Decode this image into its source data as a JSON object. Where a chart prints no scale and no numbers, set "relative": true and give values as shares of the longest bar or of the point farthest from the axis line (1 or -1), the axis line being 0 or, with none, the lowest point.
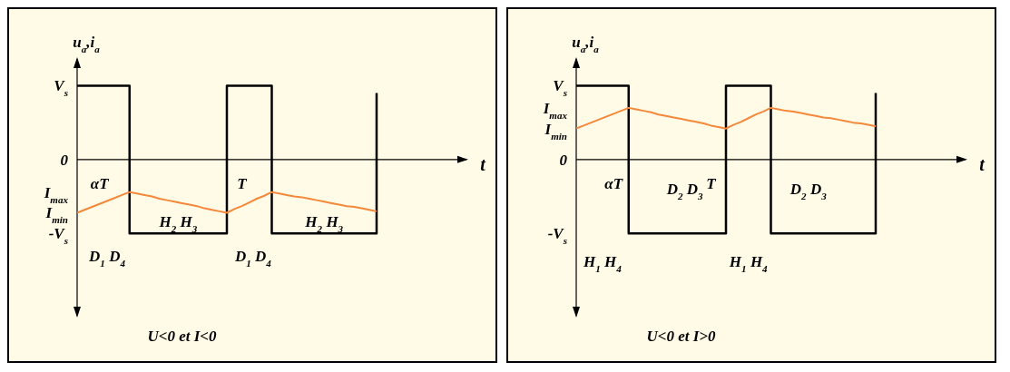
{
  "chart_data": [
    {
      "type": "line",
      "relative": true,
      "xlabel": "t",
      "ylabel": "u$_{a}$,i$_{a}$",
      "categories": [
        null,
        null,
        null,
        "αT",
        null,
        null,
        null,
        null,
        null,
        null,
        null,
        null,
        null,
        null,
        null,
        null,
        null,
        null,
        null,
        null,
        null,
        null,
        "T",
        null,
        null,
        null,
        null,
        null,
        null,
        null,
        null,
        null,
        null,
        null,
        null,
        null,
        null,
        null,
        null,
        null,
        null,
        null,
        null,
        null,
        null,
        null,
        null,
        null,
        null,
        null,
        null,
        null,
        null
      ],
      "series": [
        {
          "type": "step",
          "color": "#000000",
          "values": [
            1,
            1,
            1,
            1,
            1,
            1,
            1,
            -1,
            -1,
            -1,
            -1,
            -1,
            -1,
            -1,
            -1,
            -1,
            -1,
            -1,
            -1,
            -1,
            1,
            1,
            1,
            1,
            1,
            1,
            -1,
            -1,
            -1,
            -1,
            -1,
            -1,
            -1,
            -1,
            -1,
            -1,
            -1,
            -1,
            -1,
            -1,
            0.9,
            null,
            null,
            null,
            null,
            null,
            null,
            null,
            null,
            null,
            null,
            null,
            null
          ]
        },
        {
          "color": "#f5883a",
          "values": [
            -0.72,
            -0.68,
            -0.64,
            -0.6,
            -0.56,
            -0.52,
            -0.48,
            -0.44,
            -0.46,
            -0.48,
            -0.5,
            -0.53,
            -0.55,
            -0.57,
            -0.59,
            -0.61,
            -0.63,
            -0.66,
            -0.68,
            -0.7,
            -0.72,
            -0.67,
            -0.63,
            -0.58,
            -0.53,
            -0.49,
            -0.44,
            -0.46,
            -0.48,
            -0.5,
            -0.51,
            -0.53,
            -0.55,
            -0.57,
            -0.59,
            -0.61,
            -0.63,
            -0.64,
            -0.66,
            -0.68,
            -0.7,
            null,
            null,
            null,
            null,
            null,
            null,
            null,
            null,
            null,
            null,
            null,
            null
          ]
        }
      ],
      "annotations": [
        "V$_{s}$",
        "0",
        "I$_{max}$",
        "I$_{min}$",
        "-V$_{s}$",
        "H$_{2}$ H$_{3}$",
        "H$_{2}$ H$_{3}$",
        "D$_{1}$ D$_{4}$",
        "D$_{1}$ D$_{4}$",
        "U<0 et I<0"
      ]
    },
    {
      "type": "line",
      "relative": true,
      "xlabel": "t",
      "ylabel": "u$_{a}$,i$_{a}$",
      "categories": [
        null,
        null,
        null,
        null,
        null,
        "αT",
        null,
        null,
        null,
        null,
        null,
        null,
        null,
        null,
        null,
        null,
        null,
        null,
        "T",
        null,
        null,
        null,
        null,
        null,
        null,
        null,
        null,
        null,
        null,
        null,
        null,
        null,
        null,
        null,
        null,
        null,
        null,
        null,
        null,
        null,
        null,
        null,
        null,
        null,
        null,
        null,
        null,
        null,
        null,
        null,
        null,
        null,
        null
      ],
      "series": [
        {
          "type": "step",
          "color": "#000000",
          "values": [
            1,
            1,
            1,
            1,
            1,
            1,
            1,
            -1,
            -1,
            -1,
            -1,
            -1,
            -1,
            -1,
            -1,
            -1,
            -1,
            -1,
            -1,
            -1,
            1,
            1,
            1,
            1,
            1,
            1,
            -1,
            -1,
            -1,
            -1,
            -1,
            -1,
            -1,
            -1,
            -1,
            -1,
            -1,
            -1,
            -1,
            -1,
            0.9,
            null,
            null,
            null,
            null,
            null,
            null,
            null,
            null,
            null,
            null,
            null,
            null
          ]
        },
        {
          "color": "#f5883a",
          "values": [
            0.42,
            0.46,
            0.5,
            0.54,
            0.58,
            0.62,
            0.66,
            0.7,
            0.68,
            0.66,
            0.64,
            0.61,
            0.59,
            0.57,
            0.55,
            0.53,
            0.51,
            0.49,
            0.46,
            0.44,
            0.42,
            0.47,
            0.51,
            0.56,
            0.61,
            0.65,
            0.7,
            0.68,
            0.66,
            0.65,
            0.63,
            0.61,
            0.59,
            0.57,
            0.56,
            0.54,
            0.52,
            0.5,
            0.49,
            0.47,
            0.45,
            null,
            null,
            null,
            null,
            null,
            null,
            null,
            null,
            null,
            null,
            null,
            null
          ]
        }
      ],
      "annotations": [
        "V$_{s}$",
        "I$_{max}$",
        "I$_{min}$",
        "0",
        "-V$_{s}$",
        "D$_{2}$ D$_{3}$",
        "D$_{2}$ D$_{3}$",
        "H$_{1}$ H$_{4}$",
        "H$_{1}$ H$_{4}$",
        "U<0 et I>0"
      ]
    }
  ]
}
